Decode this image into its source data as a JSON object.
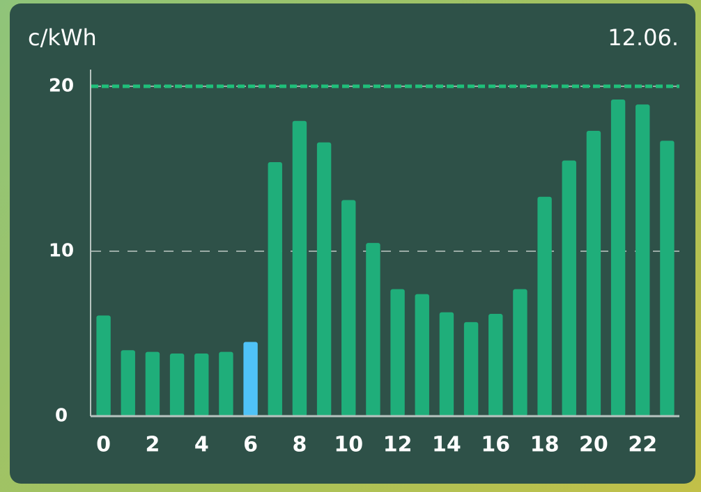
{
  "chart_data": {
    "type": "bar",
    "title": "12.06.",
    "y_label": "c/kWh",
    "x": [
      0,
      1,
      2,
      3,
      4,
      5,
      6,
      7,
      8,
      9,
      10,
      11,
      12,
      13,
      14,
      15,
      16,
      17,
      18,
      19,
      20,
      21,
      22,
      23
    ],
    "values": [
      6.1,
      4.0,
      3.9,
      3.8,
      3.8,
      3.9,
      4.5,
      15.4,
      17.9,
      16.6,
      13.1,
      10.5,
      7.7,
      7.4,
      6.3,
      5.7,
      6.2,
      7.7,
      13.3,
      15.5,
      17.3,
      19.2,
      18.9,
      16.7
    ],
    "colors": [
      "#1fae7a",
      "#1fae7a",
      "#1fae7a",
      "#1fae7a",
      "#1fae7a",
      "#1fae7a",
      "#4fc3f7",
      "#1fae7a",
      "#1fae7a",
      "#1fae7a",
      "#1fae7a",
      "#1fae7a",
      "#1fae7a",
      "#1fae7a",
      "#1fae7a",
      "#1fae7a",
      "#1fae7a",
      "#1fae7a",
      "#1fae7a",
      "#1fae7a",
      "#1fae7a",
      "#1fae7a",
      "#1fae7a",
      "#1fae7a"
    ],
    "xlim": [
      -0.5,
      23.5
    ],
    "xticks": [
      0,
      2,
      4,
      6,
      8,
      10,
      12,
      14,
      16,
      18,
      20,
      22
    ],
    "ylim": [
      0,
      20
    ],
    "yticks": [
      0,
      10,
      20
    ],
    "grid": true,
    "threshold": {
      "value": 20,
      "color": "#1fbf7a"
    }
  }
}
